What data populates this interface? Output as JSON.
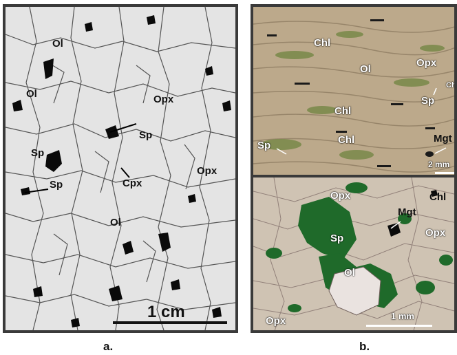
{
  "panel_a": {
    "caption": "a.",
    "labels": {
      "ol1": "Ol",
      "ol2": "Ol",
      "ol3": "Ol",
      "opx1": "Opx",
      "opx2": "Opx",
      "sp1": "Sp",
      "sp2": "Sp",
      "sp3": "Sp",
      "cpx": "Cpx"
    },
    "scale": "1 cm"
  },
  "panel_b": {
    "caption": "b.",
    "top": {
      "labels": {
        "chl1": "Chl",
        "ol": "Ol",
        "opx": "Opx",
        "chl2": "Chl",
        "chl3": "Chl",
        "chl4": "Chl",
        "sp1": "Sp",
        "sp2": "Sp",
        "mgt": "Mgt"
      },
      "scale": "2 mm"
    },
    "bottom": {
      "labels": {
        "opx1": "Opx",
        "chl": "Chl",
        "mgt": "Mgt",
        "opx2": "Opx",
        "sp": "Sp",
        "ol": "Ol",
        "opx3": "Opx"
      },
      "scale": "1 mm"
    }
  }
}
